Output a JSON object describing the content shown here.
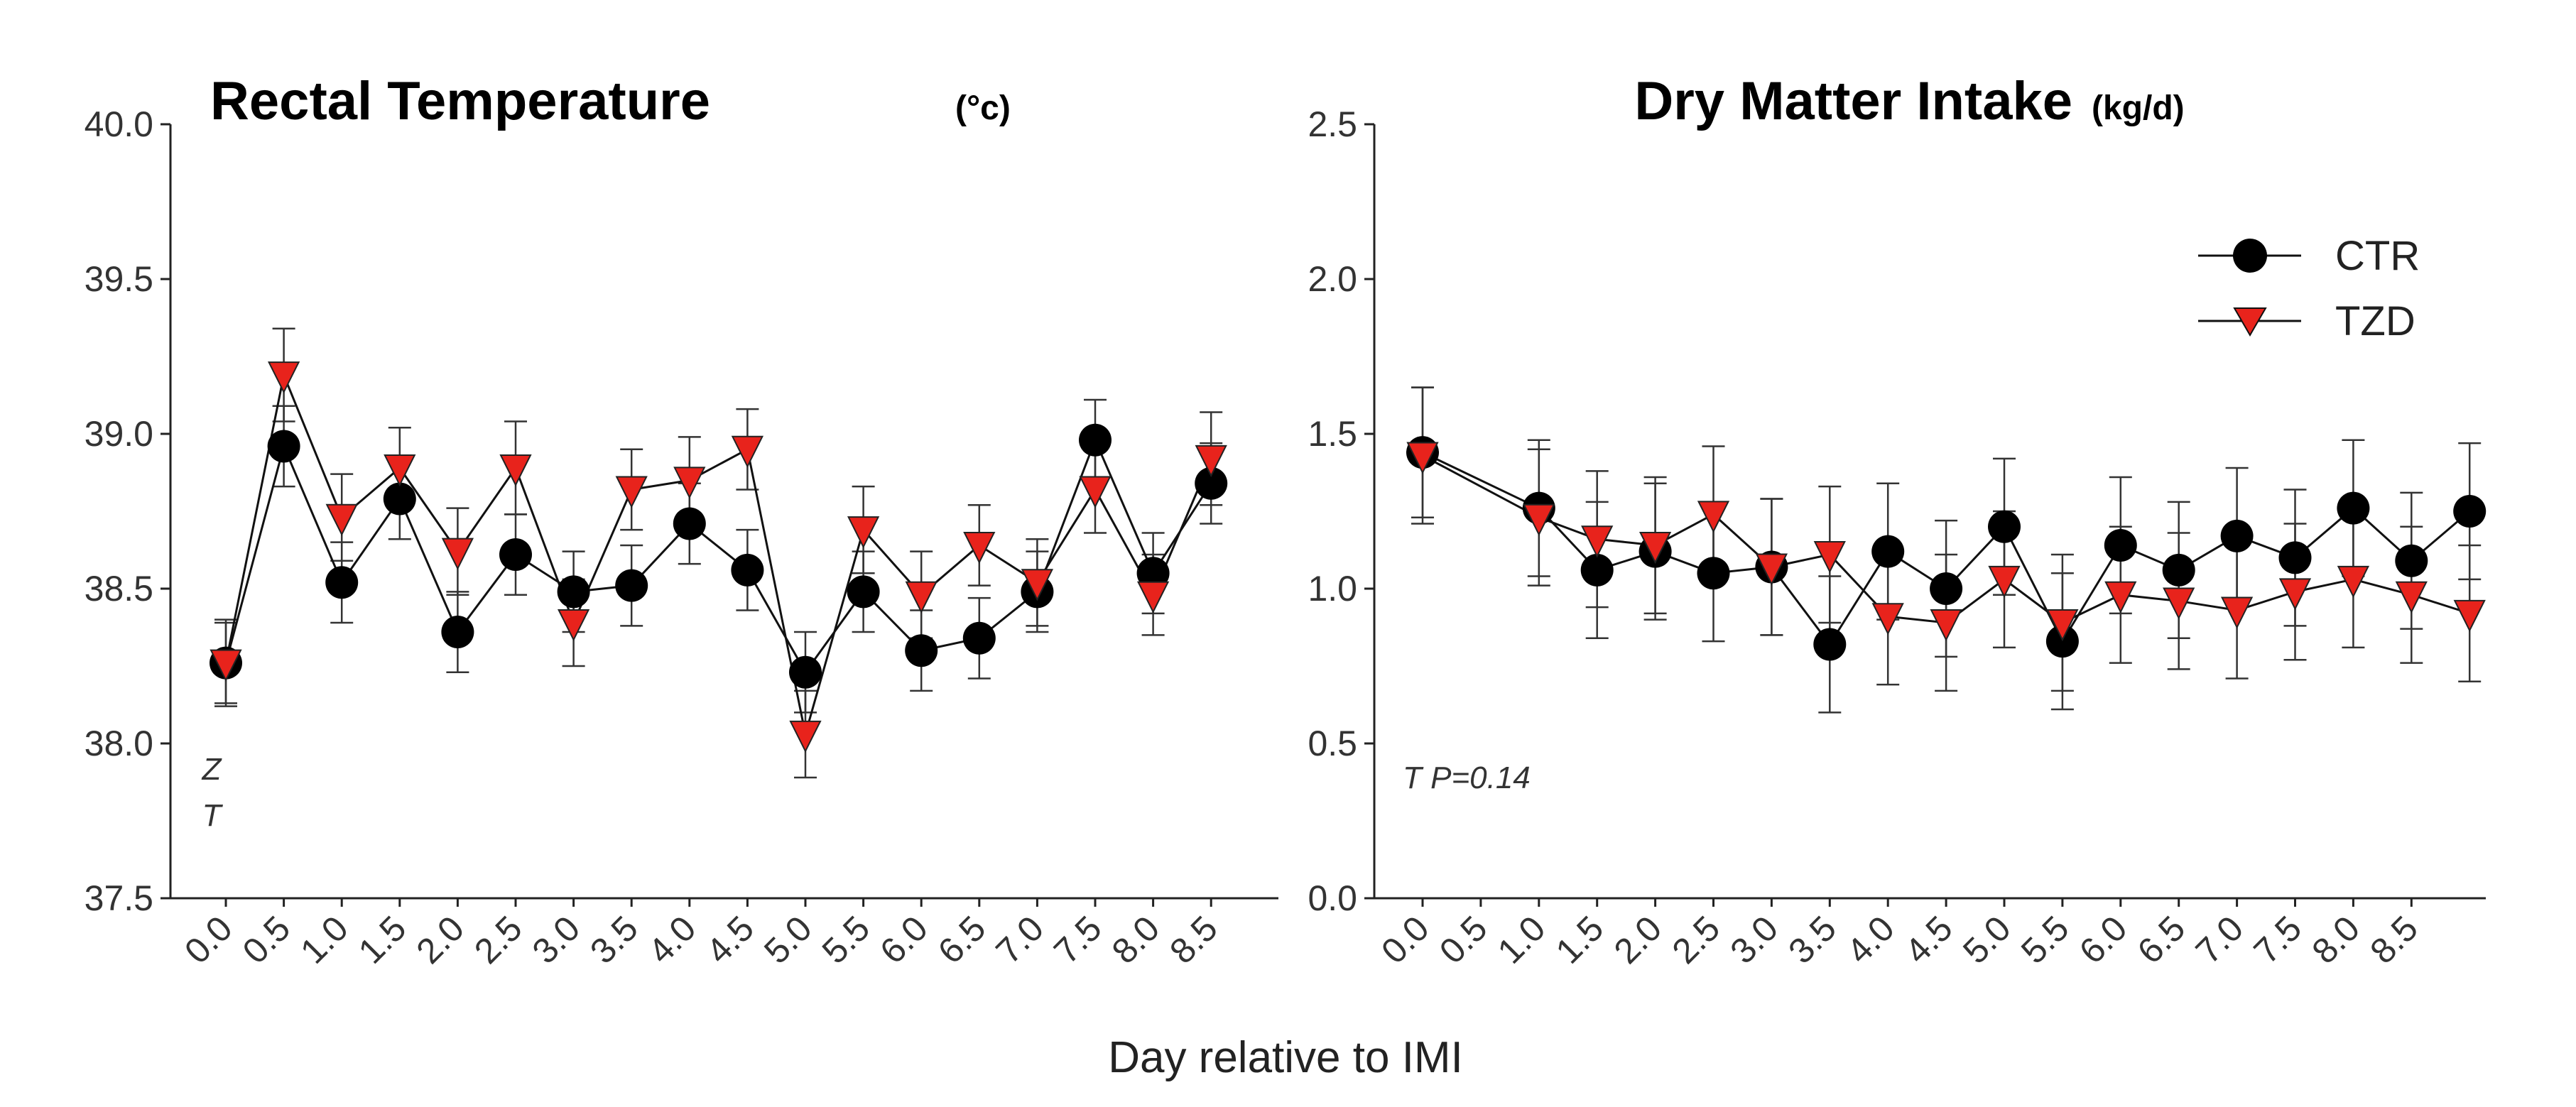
{
  "colors": {
    "ctr_marker": "#000000",
    "tzd_marker": "#e8231c",
    "line": "#111111",
    "axis": "#222222"
  },
  "chart_data": [
    {
      "type": "line",
      "title": "Rectal Temperature",
      "title_unit": "(°c)",
      "xlabel": "Day relative to IMI",
      "ylabel": "",
      "ylim": [
        37.5,
        40.0
      ],
      "yticks": [
        "37.5",
        "38.0",
        "38.5",
        "39.0",
        "39.5",
        "40.0"
      ],
      "categories": [
        "0.0",
        "0.5",
        "1.0",
        "1.5",
        "2.0",
        "2.5",
        "3.0",
        "3.5",
        "4.0",
        "4.5",
        "5.0",
        "5.5",
        "6.0",
        "6.5",
        "7.0",
        "7.5",
        "8.0",
        "8.5"
      ],
      "annotations": [
        "Z",
        "T"
      ],
      "series": [
        {
          "name": "CTR",
          "marker": "circle",
          "values": [
            38.26,
            38.96,
            38.52,
            38.79,
            38.36,
            38.61,
            38.49,
            38.51,
            38.71,
            38.56,
            38.23,
            38.49,
            38.3,
            38.34,
            38.49,
            38.98,
            38.55,
            38.84
          ],
          "errors": [
            0.13,
            0.13,
            0.13,
            0.13,
            0.13,
            0.13,
            0.13,
            0.13,
            0.13,
            0.13,
            0.13,
            0.13,
            0.13,
            0.13,
            0.13,
            0.13,
            0.13,
            0.13
          ]
        },
        {
          "name": "TZD",
          "marker": "triangle-down",
          "values": [
            38.26,
            39.19,
            38.73,
            38.89,
            38.62,
            38.89,
            38.39,
            38.82,
            38.85,
            38.95,
            38.03,
            38.69,
            38.48,
            38.64,
            38.52,
            38.82,
            38.48,
            38.92
          ],
          "errors": [
            0.14,
            0.15,
            0.14,
            0.13,
            0.14,
            0.15,
            0.14,
            0.13,
            0.14,
            0.13,
            0.14,
            0.14,
            0.14,
            0.13,
            0.14,
            0.14,
            0.13,
            0.15
          ]
        }
      ]
    },
    {
      "type": "line",
      "title": "Dry Matter Intake",
      "title_unit": "(kg/d)",
      "xlabel": "Day relative to IMI",
      "ylabel": "",
      "ylim": [
        0.0,
        2.5
      ],
      "yticks": [
        "0.0",
        "0.5",
        "1.0",
        "1.5",
        "2.0",
        "2.5"
      ],
      "categories": [
        "0.0",
        "0.5",
        "1.0",
        "1.5",
        "2.0",
        "2.5",
        "3.0",
        "3.5",
        "4.0",
        "4.5",
        "5.0",
        "5.5",
        "6.0",
        "6.5",
        "7.0",
        "7.5",
        "8.0",
        "8.5"
      ],
      "x_points": [
        0.0,
        1.0,
        1.5,
        2.0,
        2.5,
        3.0,
        3.5,
        4.0,
        4.5,
        5.0,
        5.5,
        6.0,
        6.5,
        7.0,
        7.5,
        8.0,
        8.5,
        9.0
      ],
      "annotations": [
        "T P=0.14"
      ],
      "legend": {
        "position": "top-right",
        "entries": [
          "CTR",
          "TZD"
        ]
      },
      "series": [
        {
          "name": "CTR",
          "marker": "circle",
          "values": [
            1.44,
            1.26,
            1.06,
            1.12,
            1.05,
            1.07,
            0.82,
            1.12,
            1.0,
            1.2,
            0.83,
            1.14,
            1.06,
            1.17,
            1.1,
            1.26,
            1.09,
            1.25
          ],
          "errors": [
            0.21,
            0.22,
            0.22,
            0.22,
            0.22,
            0.22,
            0.22,
            0.22,
            0.22,
            0.22,
            0.22,
            0.22,
            0.22,
            0.22,
            0.22,
            0.22,
            0.22,
            0.22
          ]
        },
        {
          "name": "TZD",
          "marker": "triangle-down",
          "values": [
            1.43,
            1.23,
            1.16,
            1.14,
            1.24,
            1.07,
            1.11,
            0.91,
            0.89,
            1.03,
            0.89,
            0.98,
            0.96,
            0.93,
            0.99,
            1.03,
            0.98,
            0.92
          ],
          "errors": [
            0.22,
            0.22,
            0.22,
            0.22,
            0.22,
            0.22,
            0.22,
            0.22,
            0.22,
            0.22,
            0.22,
            0.22,
            0.22,
            0.22,
            0.22,
            0.22,
            0.22,
            0.22
          ]
        }
      ]
    }
  ],
  "shared_xlabel": "Day relative to IMI"
}
